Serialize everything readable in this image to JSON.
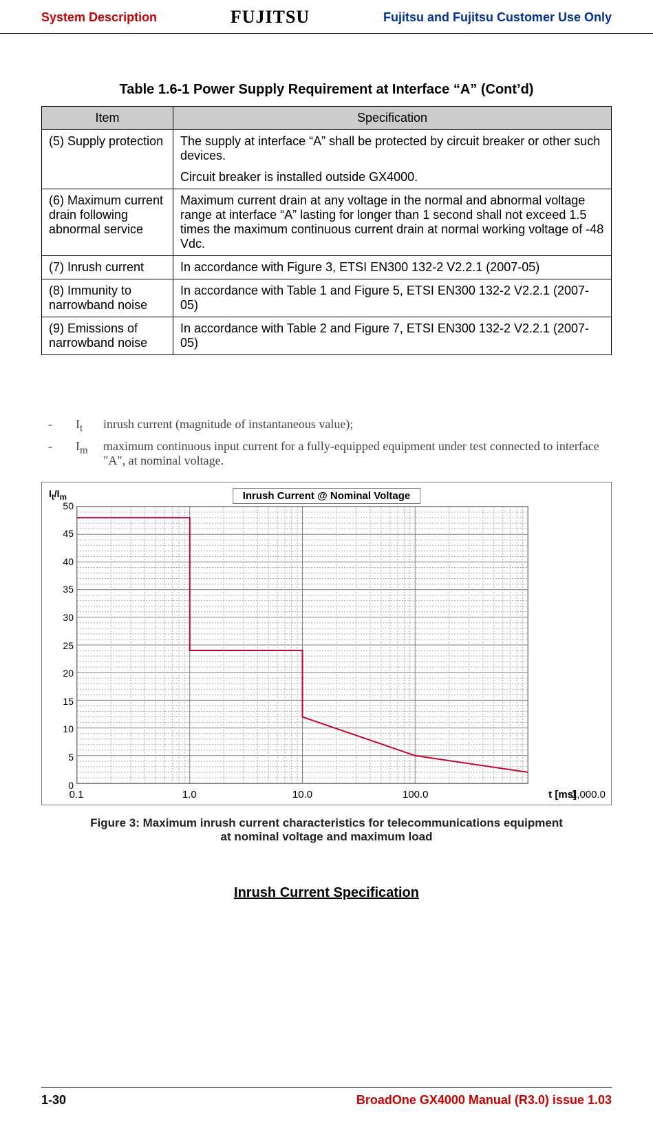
{
  "header": {
    "left": "System Description",
    "logo": "FUJITSU",
    "right": "Fujitsu and Fujitsu Customer Use Only"
  },
  "table": {
    "title": "Table 1.6-1 Power Supply Requirement at Interface “A” (Cont’d)",
    "col_item": "Item",
    "col_spec": "Specification",
    "rows": [
      {
        "item": " (5) Supply protection",
        "spec1": "The supply at interface “A” shall be protected by circuit breaker or other such devices.",
        "spec2": "Circuit breaker is installed outside GX4000."
      },
      {
        "item": "(6) Maximum current drain following abnormal service",
        "spec1": "Maximum current drain at any voltage in the normal and abnormal voltage range at interface “A” lasting for longer than 1 second shall not exceed 1.5 times the maximum continuous current drain at normal working voltage of -48 Vdc."
      },
      {
        "item": "(7) Inrush current",
        "spec1": "In accordance with Figure 3, ETSI EN300 132-2 V2.2.1 (2007-05)"
      },
      {
        "item": "(8) Immunity to narrowband noise",
        "spec1": "In accordance with Table 1 and Figure 5, ETSI EN300 132-2 V2.2.1 (2007-05)"
      },
      {
        "item": "(9) Emissions of narrowband noise",
        "spec1": "In accordance with Table 2 and Figure 7, ETSI EN300 132-2 V2.2.1 (2007-05)"
      }
    ]
  },
  "legend": {
    "i_t_sym": "I₁",
    "i_t_text": "inrush current (magnitude of instantaneous value);",
    "i_m_sym": "Iₘ",
    "i_m_text": "maximum continuous input current for a fully-equipped equipment under test connected to interface \"A\", at nominal voltage.",
    "i_t_sym_actual": "I",
    "sub_t": "t",
    "sub_m": "m"
  },
  "chart": {
    "ylabel_top": "I",
    "ylabel_sub": "t",
    "ylabel_slash": "/I",
    "ylabel_sub2": "m",
    "title": "Inrush Current @ Nominal Voltage",
    "yticks": [
      "50",
      "45",
      "40",
      "35",
      "30",
      "25",
      "20",
      "15",
      "10",
      "5",
      "0"
    ],
    "ytick_values": [
      50,
      45,
      40,
      35,
      30,
      25,
      20,
      15,
      10,
      5,
      0
    ],
    "xticks_pos": [
      0,
      0.25,
      0.5,
      0.75
    ],
    "xticks": [
      "0.1",
      "1.0",
      "10.0",
      "100.0"
    ],
    "xaxis_label": "t [ms]",
    "xaxis_end": "1,000.0",
    "ymin": 0,
    "ymax": 50,
    "xmin_log": -1,
    "xmax_log": 3,
    "line_points": [
      {
        "xlog": -1.0,
        "y": 48
      },
      {
        "xlog": 0.0,
        "y": 48
      },
      {
        "xlog": 0.0,
        "y": 24
      },
      {
        "xlog": 1.0,
        "y": 24
      },
      {
        "xlog": 1.0,
        "y": 12
      },
      {
        "xlog": 2.0,
        "y": 5
      },
      {
        "xlog": 3.0,
        "y": 2
      }
    ],
    "line_color": "#cc0033",
    "grid_major": "#808080",
    "grid_minor": "#b0b0b0",
    "line_width": 2
  },
  "figure_caption_l1": "Figure 3: Maximum inrush current characteristics for telecommunications equipment",
  "figure_caption_l2": "at nominal voltage and maximum load",
  "section_title": "Inrush Current Specification",
  "footer": {
    "left": "1-30",
    "right": "BroadOne GX4000 Manual (R3.0) issue 1.03"
  }
}
